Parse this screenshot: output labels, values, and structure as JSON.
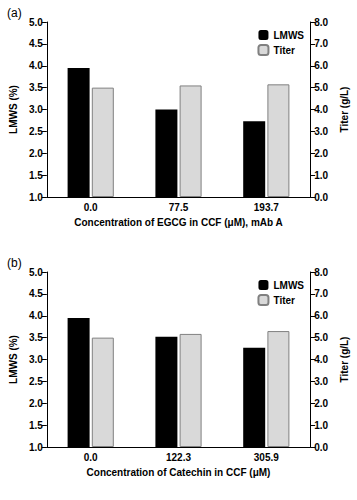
{
  "chart_data": [
    {
      "type": "bar",
      "title": "(a)",
      "categories": [
        "0.0",
        "77.5",
        "193.7"
      ],
      "series": [
        {
          "name": "LMWS",
          "color": "#000000",
          "values": [
            3.95,
            3.0,
            2.73
          ]
        },
        {
          "name": "Titer",
          "color": "#d9d9d9",
          "values": [
            5.0,
            5.1,
            5.15
          ],
          "axis": "y2"
        }
      ],
      "x_label": "Concentration of EGCG in CCF (μM), mAb A",
      "y_label": "LMWS (%)",
      "y2_label": "Titer (g/L)",
      "ylim": [
        1,
        5
      ],
      "yticks": [
        {
          "value": 1,
          "label": "1.0"
        },
        {
          "value": 1.5,
          "label": "1.5"
        },
        {
          "value": 2,
          "label": "2.0"
        },
        {
          "value": 2.5,
          "label": "2.5"
        },
        {
          "value": 3,
          "label": "3.0"
        },
        {
          "value": 3.5,
          "label": "3.5"
        },
        {
          "value": 4,
          "label": "4.0"
        },
        {
          "value": 4.5,
          "label": "4.5"
        },
        {
          "value": 5,
          "label": "5.0"
        }
      ],
      "y2lim": [
        0,
        8
      ],
      "y2ticks": [
        {
          "value": 0,
          "label": "0.0"
        },
        {
          "value": 1,
          "label": "1.0"
        },
        {
          "value": 2,
          "label": "2.0"
        },
        {
          "value": 3,
          "label": "3.0"
        },
        {
          "value": 4,
          "label": "4.0"
        },
        {
          "value": 5,
          "label": "5.0"
        },
        {
          "value": 6,
          "label": "6.0"
        },
        {
          "value": 7,
          "label": "7.0"
        },
        {
          "value": 8,
          "label": "8.0"
        }
      ],
      "grid": false,
      "legend": "upper right"
    },
    {
      "type": "bar",
      "title": "(b)",
      "categories": [
        "0.0",
        "122.3",
        "305.9"
      ],
      "series": [
        {
          "name": "LMWS",
          "color": "#000000",
          "values": [
            3.95,
            3.52,
            3.27
          ]
        },
        {
          "name": "Titer",
          "color": "#d9d9d9",
          "values": [
            5.0,
            5.17,
            5.3
          ],
          "axis": "y2"
        }
      ],
      "x_label": "Concentration of Catechin in CCF (μM)",
      "y_label": "LMWS (%)",
      "y2_label": "Titer (g/L)",
      "ylim": [
        1,
        5
      ],
      "yticks": [
        {
          "value": 1,
          "label": "1.0"
        },
        {
          "value": 1.5,
          "label": "1.5"
        },
        {
          "value": 2,
          "label": "2.0"
        },
        {
          "value": 2.5,
          "label": "2.5"
        },
        {
          "value": 3,
          "label": "3.0"
        },
        {
          "value": 3.5,
          "label": "3.5"
        },
        {
          "value": 4,
          "label": "4.0"
        },
        {
          "value": 4.5,
          "label": "4.5"
        },
        {
          "value": 5,
          "label": "5.0"
        }
      ],
      "y2lim": [
        0,
        8
      ],
      "y2ticks": [
        {
          "value": 0,
          "label": "0.0"
        },
        {
          "value": 1,
          "label": "1.0"
        },
        {
          "value": 2,
          "label": "2.0"
        },
        {
          "value": 3,
          "label": "3.0"
        },
        {
          "value": 4,
          "label": "4.0"
        },
        {
          "value": 5,
          "label": "5.0"
        },
        {
          "value": 6,
          "label": "6.0"
        },
        {
          "value": 7,
          "label": "7.0"
        },
        {
          "value": 8,
          "label": "8.0"
        }
      ],
      "grid": false,
      "legend": "upper right"
    }
  ]
}
